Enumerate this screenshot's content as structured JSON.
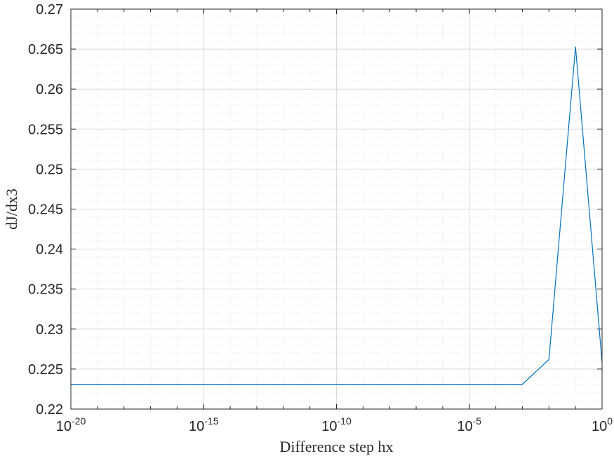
{
  "chart_data": {
    "type": "line",
    "title": "",
    "xlabel": "Difference step hx",
    "ylabel": "dJ/dx3",
    "x_scale": "log",
    "xlim": [
      1e-20,
      1
    ],
    "ylim": [
      0.22,
      0.27
    ],
    "x_ticks": [
      1e-20,
      1e-15,
      1e-10,
      1e-05,
      1
    ],
    "x_tick_labels": [
      {
        "base": "10",
        "exp": "-20"
      },
      {
        "base": "10",
        "exp": "-15"
      },
      {
        "base": "10",
        "exp": "-10"
      },
      {
        "base": "10",
        "exp": "-5"
      },
      {
        "base": "10",
        "exp": "0"
      }
    ],
    "y_ticks": [
      0.22,
      0.225,
      0.23,
      0.235,
      0.24,
      0.245,
      0.25,
      0.255,
      0.26,
      0.265,
      0.27
    ],
    "y_tick_labels": [
      "0.22",
      "0.225",
      "0.23",
      "0.235",
      "0.24",
      "0.245",
      "0.25",
      "0.255",
      "0.26",
      "0.265",
      "0.27"
    ],
    "grid": true,
    "minor_grid": true,
    "series": [
      {
        "color": "#0072BD",
        "x": [
          1e-20,
          1e-19,
          1e-18,
          1e-17,
          1e-16,
          1e-15,
          1e-14,
          1e-13,
          1e-12,
          1e-11,
          1e-10,
          1e-09,
          1e-08,
          1e-07,
          1e-06,
          1e-05,
          0.0001,
          0.001,
          0.01,
          0.1,
          1
        ],
        "y": [
          0.2231,
          0.2231,
          0.2231,
          0.2231,
          0.2231,
          0.2231,
          0.2231,
          0.2231,
          0.2231,
          0.2231,
          0.2231,
          0.2231,
          0.2231,
          0.2231,
          0.2231,
          0.2231,
          0.2231,
          0.2231,
          0.2262,
          0.2653,
          0.2258
        ]
      }
    ]
  }
}
